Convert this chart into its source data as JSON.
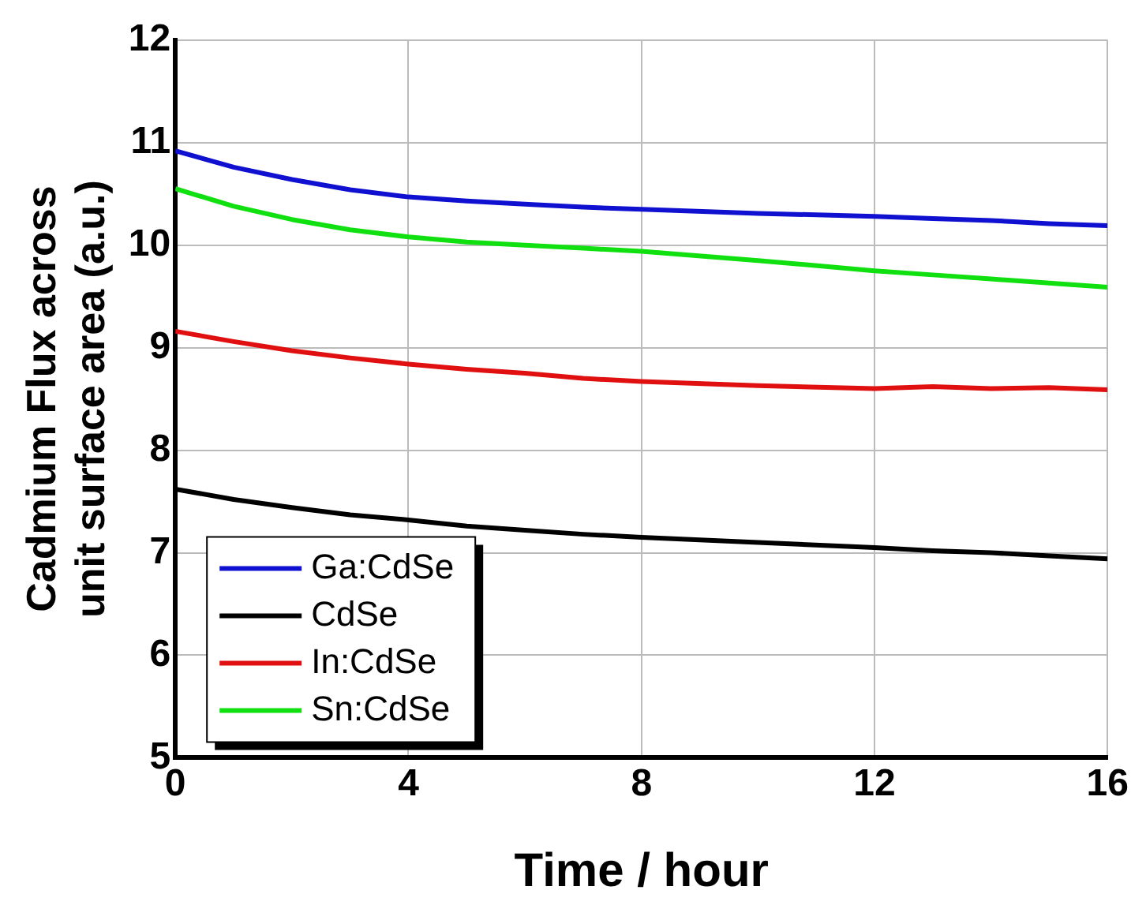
{
  "chart_data": {
    "type": "line",
    "xlabel": "Time / hour",
    "ylabel": "Cadmium Flux across\nunit surface area (a.u.)",
    "x": [
      0,
      1,
      2,
      3,
      4,
      5,
      6,
      7,
      8,
      10,
      12,
      13,
      14,
      15,
      16
    ],
    "series": [
      {
        "name": "Ga:CdSe",
        "color": "#1010d0",
        "values": [
          10.92,
          10.76,
          10.64,
          10.54,
          10.47,
          10.43,
          10.4,
          10.37,
          10.35,
          10.31,
          10.28,
          10.26,
          10.24,
          10.21,
          10.19
        ]
      },
      {
        "name": "CdSe",
        "color": "#000000",
        "values": [
          7.62,
          7.52,
          7.44,
          7.37,
          7.32,
          7.26,
          7.22,
          7.18,
          7.15,
          7.1,
          7.05,
          7.02,
          7.0,
          6.97,
          6.94
        ]
      },
      {
        "name": "In:CdSe",
        "color": "#e01010",
        "values": [
          9.16,
          9.06,
          8.97,
          8.9,
          8.84,
          8.79,
          8.75,
          8.7,
          8.67,
          8.63,
          8.6,
          8.62,
          8.6,
          8.61,
          8.59
        ]
      },
      {
        "name": "Sn:CdSe",
        "color": "#10e010",
        "values": [
          10.55,
          10.38,
          10.25,
          10.15,
          10.08,
          10.03,
          10.0,
          9.97,
          9.94,
          9.85,
          9.75,
          9.71,
          9.67,
          9.63,
          9.59
        ]
      }
    ],
    "xlim": [
      0,
      16
    ],
    "xticks": [
      0,
      4,
      8,
      12,
      16
    ],
    "ylim": [
      5,
      12
    ],
    "yticks": [
      5,
      6,
      7,
      8,
      9,
      10,
      11,
      12
    ],
    "grid": true,
    "legend": "bottom left",
    "marker": "none",
    "line_style": "solid"
  }
}
